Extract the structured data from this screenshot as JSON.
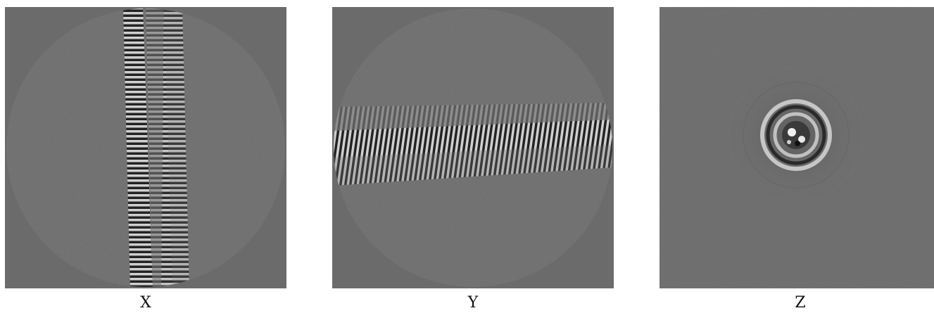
{
  "panels": [
    {
      "id": "x",
      "label": "X"
    },
    {
      "id": "y",
      "label": "Y"
    },
    {
      "id": "z",
      "label": "Z"
    }
  ],
  "colors": {
    "background_gray": "#6b6b6b",
    "stripe_light": "#dcdcdc",
    "stripe_dark": "#141414"
  }
}
